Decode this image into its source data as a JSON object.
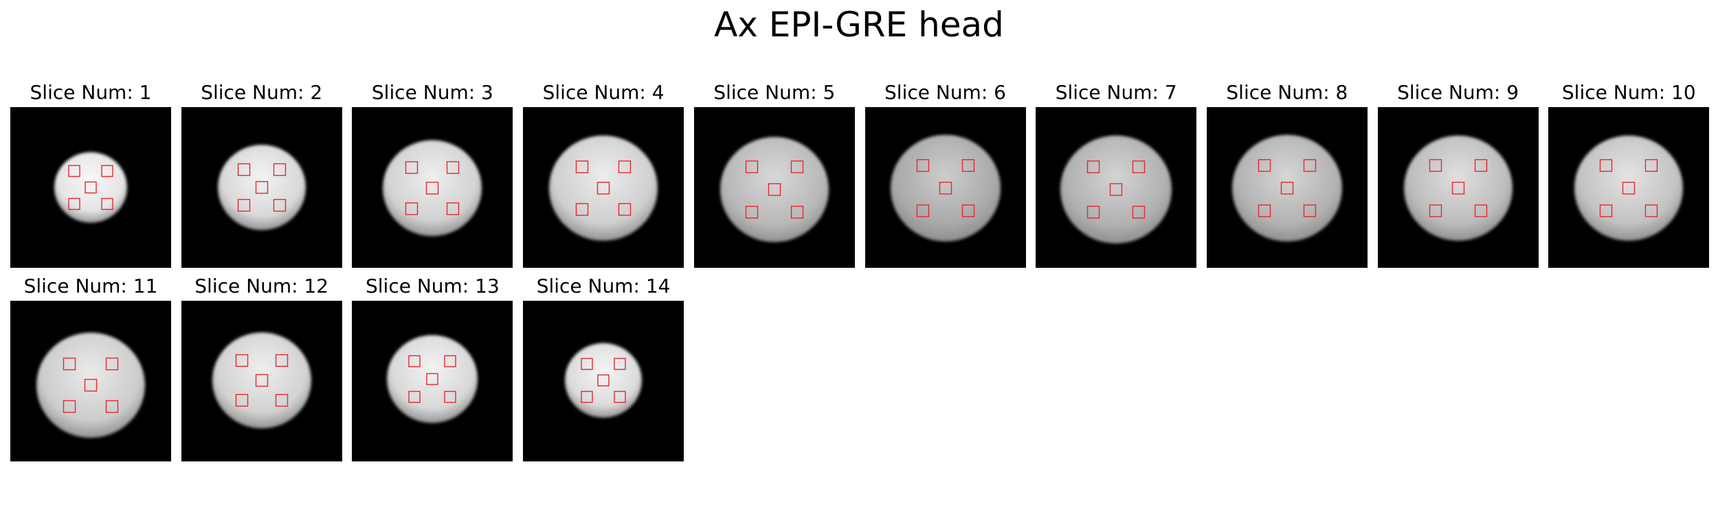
{
  "title": "Ax EPI-GRE head",
  "panel_label_prefix": "Slice Num: ",
  "roi_color": "#e8262c",
  "slices": [
    {
      "num": 1,
      "label": "Slice Num: 1"
    },
    {
      "num": 2,
      "label": "Slice Num: 2"
    },
    {
      "num": 3,
      "label": "Slice Num: 3"
    },
    {
      "num": 4,
      "label": "Slice Num: 4"
    },
    {
      "num": 5,
      "label": "Slice Num: 5"
    },
    {
      "num": 6,
      "label": "Slice Num: 6"
    },
    {
      "num": 7,
      "label": "Slice Num: 7"
    },
    {
      "num": 8,
      "label": "Slice Num: 8"
    },
    {
      "num": 9,
      "label": "Slice Num: 9"
    },
    {
      "num": 10,
      "label": "Slice Num: 10"
    },
    {
      "num": 11,
      "label": "Slice Num: 11"
    },
    {
      "num": 12,
      "label": "Slice Num: 12"
    },
    {
      "num": 13,
      "label": "Slice Num: 13"
    },
    {
      "num": 14,
      "label": "Slice Num: 14"
    }
  ]
}
